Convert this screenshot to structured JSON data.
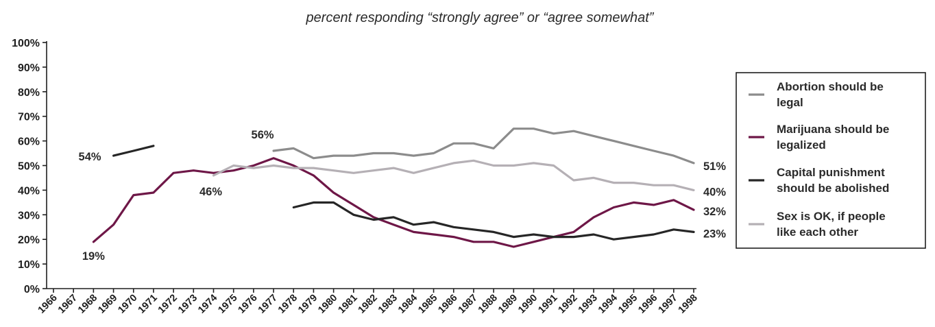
{
  "chart_data": {
    "type": "line",
    "subtitle": "percent responding “strongly agree” or “agree somewhat”",
    "y_tick_labels": [
      "0%",
      "10%",
      "20%",
      "30%",
      "40%",
      "50%",
      "60%",
      "70%",
      "80%",
      "90%",
      "100%"
    ],
    "ylim": [
      0,
      100
    ],
    "x": [
      1966,
      1967,
      1968,
      1969,
      1970,
      1971,
      1972,
      1973,
      1974,
      1975,
      1976,
      1977,
      1978,
      1979,
      1980,
      1981,
      1982,
      1983,
      1984,
      1985,
      1986,
      1987,
      1988,
      1989,
      1990,
      1991,
      1992,
      1993,
      1994,
      1995,
      1996,
      1997,
      1998
    ],
    "xlim": [
      1966,
      1998
    ],
    "grid": false,
    "legend_position": "right",
    "series": [
      {
        "name": "Abortion should be legal",
        "color": "#8c8c8c",
        "values": [
          null,
          null,
          null,
          null,
          null,
          null,
          null,
          null,
          null,
          null,
          null,
          56,
          57,
          53,
          54,
          54,
          55,
          55,
          54,
          55,
          59,
          59,
          57,
          65,
          65,
          63,
          64,
          62,
          60,
          58,
          56,
          54,
          51
        ]
      },
      {
        "name": "Marijuana should be legalized",
        "color": "#6e1747",
        "values": [
          null,
          null,
          19,
          26,
          38,
          39,
          47,
          48,
          47,
          48,
          50,
          53,
          50,
          46,
          39,
          34,
          29,
          26,
          23,
          22,
          21,
          19,
          19,
          17,
          19,
          21,
          23,
          29,
          33,
          35,
          34,
          36,
          32
        ]
      },
      {
        "name": "Capital punishment should be abolished",
        "color": "#262626",
        "values": [
          null,
          null,
          null,
          54,
          56,
          58,
          null,
          null,
          null,
          null,
          null,
          null,
          33,
          35,
          35,
          30,
          28,
          29,
          26,
          27,
          25,
          24,
          23,
          21,
          22,
          21,
          21,
          22,
          20,
          21,
          22,
          24,
          23
        ]
      },
      {
        "name": "Sex is OK, if people like each other",
        "color": "#b5b0b5",
        "values": [
          null,
          null,
          null,
          null,
          null,
          null,
          null,
          null,
          46,
          50,
          49,
          50,
          49,
          49,
          48,
          47,
          48,
          49,
          47,
          49,
          51,
          52,
          50,
          50,
          51,
          50,
          44,
          45,
          43,
          43,
          42,
          42,
          40
        ]
      }
    ],
    "annotations": [
      {
        "text": "54%",
        "x": 1969,
        "y": 54
      },
      {
        "text": "19%",
        "x": 1968,
        "y": 19
      },
      {
        "text": "46%",
        "x": 1974,
        "y": 46
      },
      {
        "text": "56%",
        "x": 1977,
        "y": 56
      },
      {
        "text": "51%",
        "x": 1998,
        "y": 51
      },
      {
        "text": "40%",
        "x": 1998,
        "y": 40
      },
      {
        "text": "32%",
        "x": 1998,
        "y": 32
      },
      {
        "text": "23%",
        "x": 1998,
        "y": 23
      }
    ],
    "legend": [
      {
        "lines": [
          "Abortion should be",
          "legal"
        ],
        "color": "#8c8c8c"
      },
      {
        "lines": [
          "Marijuana should be",
          "legalized"
        ],
        "color": "#6e1747"
      },
      {
        "lines": [
          "Capital punishment",
          "should be abolished"
        ],
        "color": "#262626"
      },
      {
        "lines": [
          "Sex is OK, if people",
          "like each other"
        ],
        "color": "#b5b0b5"
      }
    ]
  }
}
